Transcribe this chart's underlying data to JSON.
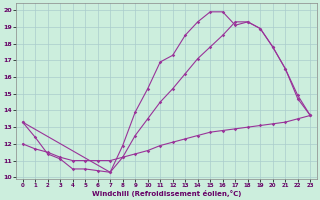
{
  "bg_color": "#cceedd",
  "grid_color": "#aacccc",
  "line_color": "#993399",
  "xlim": [
    0,
    23
  ],
  "ylim": [
    10,
    20
  ],
  "xtick_vals": [
    0,
    1,
    2,
    3,
    4,
    5,
    6,
    7,
    8,
    9,
    10,
    11,
    12,
    13,
    14,
    15,
    16,
    17,
    18,
    19,
    20,
    21,
    22,
    23
  ],
  "ytick_vals": [
    10,
    11,
    12,
    13,
    14,
    15,
    16,
    17,
    18,
    19,
    20
  ],
  "xlabel": "Windchill (Refroidissement éolien,°C)",
  "line1_x": [
    0,
    1,
    2,
    3,
    4,
    5,
    6,
    7,
    8,
    9,
    10,
    11,
    12,
    13,
    14,
    15,
    16,
    17,
    18,
    19,
    20,
    21,
    22,
    23
  ],
  "line1_y": [
    13.3,
    12.4,
    11.4,
    11.1,
    10.5,
    10.5,
    10.4,
    10.3,
    11.9,
    13.9,
    15.3,
    16.9,
    17.3,
    18.5,
    19.3,
    19.9,
    19.9,
    19.1,
    19.3,
    18.9,
    17.8,
    16.5,
    14.9,
    13.7
  ],
  "line2_x": [
    0,
    7,
    8,
    9,
    10,
    11,
    12,
    13,
    14,
    15,
    16,
    17,
    18,
    19,
    20,
    21,
    22,
    23
  ],
  "line2_y": [
    13.3,
    10.3,
    11.2,
    12.5,
    13.5,
    14.5,
    15.3,
    16.2,
    17.1,
    17.8,
    18.5,
    19.3,
    19.3,
    18.9,
    17.8,
    16.5,
    14.7,
    13.7
  ],
  "line3_x": [
    0,
    1,
    2,
    3,
    4,
    5,
    6,
    7,
    8,
    9,
    10,
    11,
    12,
    13,
    14,
    15,
    16,
    17,
    18,
    19,
    20,
    21,
    22,
    23
  ],
  "line3_y": [
    12.0,
    11.7,
    11.5,
    11.2,
    11.0,
    11.0,
    11.0,
    11.0,
    11.2,
    11.4,
    11.6,
    11.9,
    12.1,
    12.3,
    12.5,
    12.7,
    12.8,
    12.9,
    13.0,
    13.1,
    13.2,
    13.3,
    13.5,
    13.7
  ]
}
